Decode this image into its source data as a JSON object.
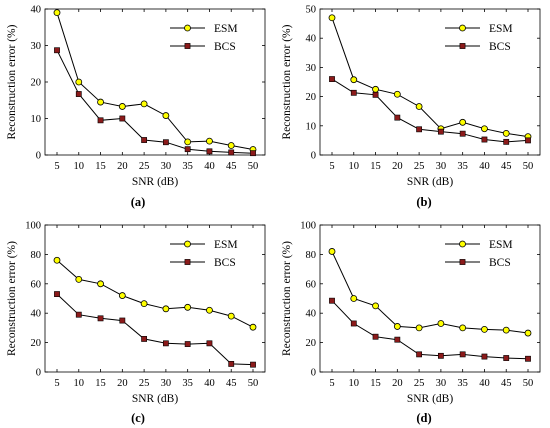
{
  "chart_data": [
    {
      "type": "line",
      "caption": "(a)",
      "xlabel": "SNR (dB)",
      "ylabel": "Reconstruction error (%)",
      "x": [
        5,
        10,
        15,
        20,
        25,
        30,
        35,
        40,
        45,
        50
      ],
      "xlim": [
        5,
        50
      ],
      "ylim": [
        0,
        40
      ],
      "yticks": [
        0,
        10,
        20,
        30,
        40
      ],
      "legend": "top-right",
      "series": [
        {
          "name": "ESM",
          "values": [
            39.0,
            20.0,
            14.5,
            13.3,
            14.0,
            10.8,
            3.6,
            3.8,
            2.6,
            1.5
          ]
        },
        {
          "name": "BCS",
          "values": [
            28.7,
            16.7,
            9.5,
            10.0,
            4.1,
            3.5,
            1.6,
            1.0,
            0.7,
            0.5
          ]
        }
      ]
    },
    {
      "type": "line",
      "caption": "(b)",
      "xlabel": "SNR (dB)",
      "ylabel": "Reconstruction error (%)",
      "x": [
        5,
        10,
        15,
        20,
        25,
        30,
        35,
        40,
        45,
        50
      ],
      "xlim": [
        5,
        50
      ],
      "ylim": [
        0,
        50
      ],
      "yticks": [
        0,
        10,
        20,
        30,
        40,
        50
      ],
      "legend": "top-right",
      "series": [
        {
          "name": "ESM",
          "values": [
            47.0,
            25.8,
            22.5,
            20.8,
            16.6,
            9.0,
            11.2,
            9.0,
            7.4,
            6.3
          ]
        },
        {
          "name": "BCS",
          "values": [
            26.0,
            21.3,
            20.6,
            12.8,
            8.8,
            8.0,
            7.3,
            5.3,
            4.5,
            5.0
          ]
        }
      ]
    },
    {
      "type": "line",
      "caption": "(c)",
      "xlabel": "SNR (dB)",
      "ylabel": "Reconstruction error (%)",
      "x": [
        5,
        10,
        15,
        20,
        25,
        30,
        35,
        40,
        45,
        50
      ],
      "xlim": [
        5,
        50
      ],
      "ylim": [
        0,
        100
      ],
      "yticks": [
        0,
        20,
        40,
        60,
        80,
        100
      ],
      "legend": "top-right",
      "series": [
        {
          "name": "ESM",
          "values": [
            76.0,
            63.0,
            60.0,
            52.0,
            46.5,
            43.0,
            44.0,
            42.0,
            38.0,
            30.5
          ]
        },
        {
          "name": "BCS",
          "values": [
            53.0,
            39.0,
            36.5,
            35.0,
            22.5,
            19.5,
            19.0,
            19.5,
            5.5,
            5.0
          ]
        }
      ]
    },
    {
      "type": "line",
      "caption": "(d)",
      "xlabel": "SNR (dB)",
      "ylabel": "Reconstruction error (%)",
      "x": [
        5,
        10,
        15,
        20,
        25,
        30,
        35,
        40,
        45,
        50
      ],
      "xlim": [
        5,
        50
      ],
      "ylim": [
        0,
        100
      ],
      "yticks": [
        0,
        20,
        40,
        60,
        80,
        100
      ],
      "legend": "top-right",
      "series": [
        {
          "name": "ESM",
          "values": [
            82.0,
            50.0,
            45.0,
            31.0,
            30.0,
            33.0,
            30.0,
            29.0,
            28.5,
            26.5
          ]
        },
        {
          "name": "BCS",
          "values": [
            48.5,
            33.0,
            24.0,
            22.0,
            12.0,
            11.0,
            12.0,
            10.5,
            9.5,
            9.0
          ]
        }
      ]
    }
  ],
  "colors": {
    "esm_fill": "#ffff00",
    "bcs_fill": "#8b1a1a",
    "line": "#000000",
    "caption_bold": "(a)"
  }
}
